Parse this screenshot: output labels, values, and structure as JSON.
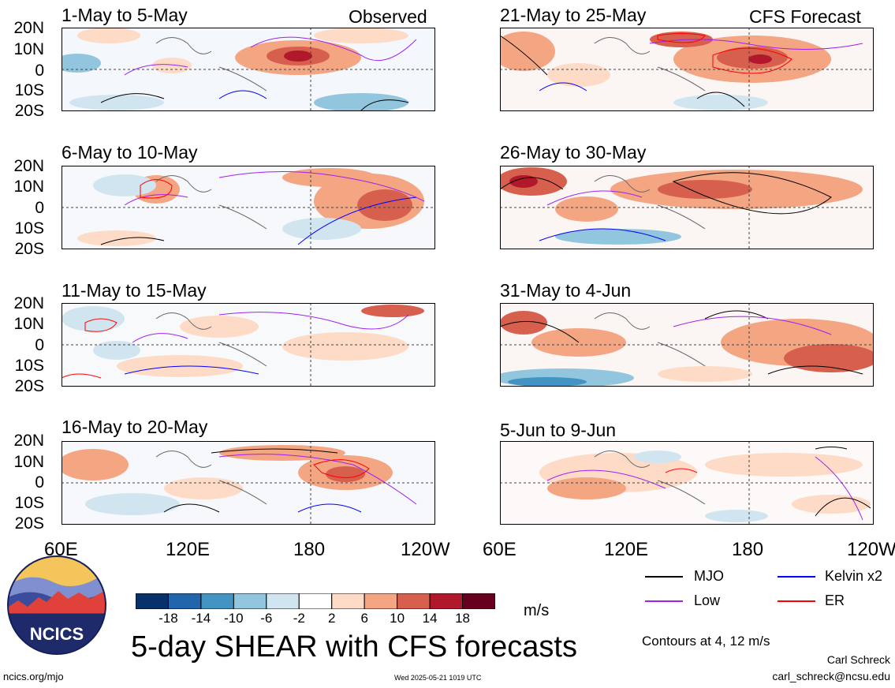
{
  "panels": [
    {
      "title": "1-May to 5-May",
      "tag": "Observed"
    },
    {
      "title": "6-May to 10-May",
      "tag": ""
    },
    {
      "title": "11-May to 15-May",
      "tag": ""
    },
    {
      "title": "16-May to 20-May",
      "tag": ""
    },
    {
      "title": "21-May to 25-May",
      "tag": "CFS Forecast"
    },
    {
      "title": "26-May to 30-May",
      "tag": ""
    },
    {
      "title": "31-May to 4-Jun",
      "tag": ""
    },
    {
      "title": "5-Jun to 9-Jun",
      "tag": ""
    }
  ],
  "lat_labels": [
    "20N",
    "10N",
    "0",
    "10S",
    "20S"
  ],
  "lon_labels": [
    "60E",
    "120E",
    "180",
    "120W"
  ],
  "colorbar": {
    "ticks": [
      "-18",
      "-14",
      "-10",
      "-6",
      "-2",
      "2",
      "6",
      "10",
      "14",
      "18"
    ],
    "colors": [
      "#08306b",
      "#2166ac",
      "#4393c3",
      "#92c5de",
      "#d1e5f0",
      "#ffffff",
      "#fddbc7",
      "#f4a582",
      "#d6604d",
      "#b2182b",
      "#67001f"
    ],
    "unit": "m/s"
  },
  "legend": {
    "items": [
      {
        "label": "MJO",
        "color": "#000000"
      },
      {
        "label": "Kelvin x2",
        "color": "#0000ff"
      },
      {
        "label": "Low",
        "color": "#a020f0"
      },
      {
        "label": "ER",
        "color": "#ff0000"
      }
    ],
    "contours": "Contours at 4, 12 m/s"
  },
  "logo": {
    "text": "NCICS"
  },
  "main_title": "5-day SHEAR with CFS forecasts",
  "footer": {
    "url": "ncics.org/mjo",
    "timestamp": "Wed 2025-05-21 1019 UTC",
    "author": "Carl Schreck",
    "email": "carl_schreck@ncsu.edu"
  }
}
